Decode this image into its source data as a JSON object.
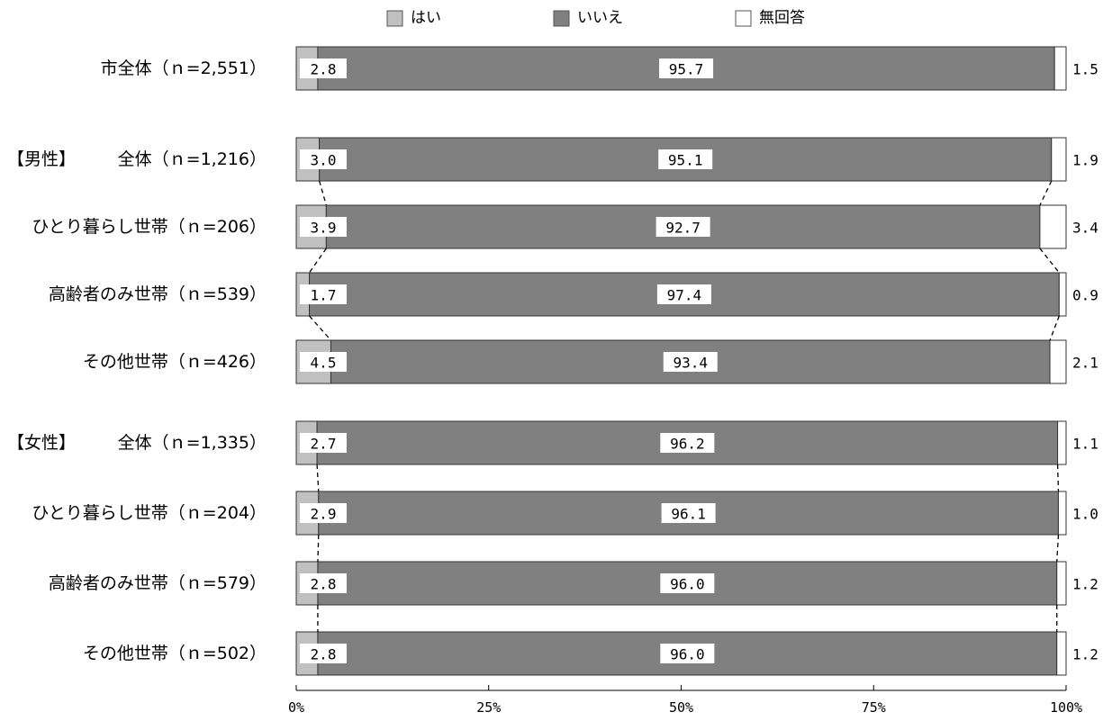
{
  "chart_data": {
    "type": "bar",
    "orientation": "horizontal",
    "stacked": "percent",
    "legend_placement": "top",
    "grid": false,
    "xlim": [
      0,
      100
    ],
    "ticks": [
      "0%",
      "25%",
      "50%",
      "75%",
      "100%"
    ],
    "tick_values": [
      0,
      25,
      50,
      75,
      100
    ],
    "series": [
      {
        "name": "はい",
        "color": "#c0c0c0"
      },
      {
        "name": "いいえ",
        "color": "#808080"
      },
      {
        "name": "無回答",
        "color": "#ffffff"
      }
    ],
    "rows": [
      {
        "group": "",
        "label": "市全体（ｎ=2,551）",
        "values": [
          2.8,
          95.7,
          1.5
        ],
        "labels": [
          "2.8",
          "95.7",
          "1.5"
        ]
      },
      {
        "group": "【男性】",
        "label": "全体（ｎ=1,216）",
        "values": [
          3.0,
          95.1,
          1.9
        ],
        "labels": [
          "3.0",
          "95.1",
          "1.9"
        ]
      },
      {
        "group": "",
        "label": "ひとり暮らし世帯（ｎ=206）",
        "values": [
          3.9,
          92.7,
          3.4
        ],
        "labels": [
          "3.9",
          "92.7",
          "3.4"
        ]
      },
      {
        "group": "",
        "label": "高齢者のみ世帯（ｎ=539）",
        "values": [
          1.7,
          97.4,
          0.9
        ],
        "labels": [
          "1.7",
          "97.4",
          "0.9"
        ]
      },
      {
        "group": "",
        "label": "その他世帯（ｎ=426）",
        "values": [
          4.5,
          93.4,
          2.1
        ],
        "labels": [
          "4.5",
          "93.4",
          "2.1"
        ]
      },
      {
        "group": "【女性】",
        "label": "全体（ｎ=1,335）",
        "values": [
          2.7,
          96.2,
          1.1
        ],
        "labels": [
          "2.7",
          "96.2",
          "1.1"
        ]
      },
      {
        "group": "",
        "label": "ひとり暮らし世帯（ｎ=204）",
        "values": [
          2.9,
          96.1,
          1.0
        ],
        "labels": [
          "2.9",
          "96.1",
          "1.0"
        ]
      },
      {
        "group": "",
        "label": "高齢者のみ世帯（ｎ=579）",
        "values": [
          2.8,
          96.0,
          1.2
        ],
        "labels": [
          "2.8",
          "96.0",
          "1.2"
        ]
      },
      {
        "group": "",
        "label": "その他世帯（ｎ=502）",
        "values": [
          2.8,
          96.0,
          1.2
        ],
        "labels": [
          "2.8",
          "96.0",
          "1.2"
        ]
      }
    ],
    "connector_groups": [
      [
        1,
        2,
        3,
        4
      ],
      [
        5,
        6,
        7,
        8
      ]
    ]
  }
}
